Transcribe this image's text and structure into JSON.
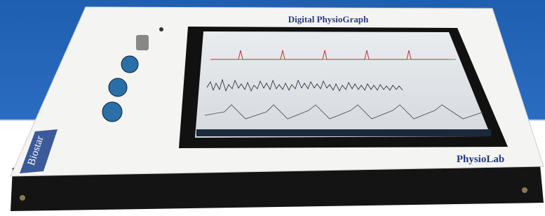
{
  "device": {
    "title": "Digital PhysioGraph",
    "brand": "PhysioLab",
    "side_label": "Biostar"
  }
}
